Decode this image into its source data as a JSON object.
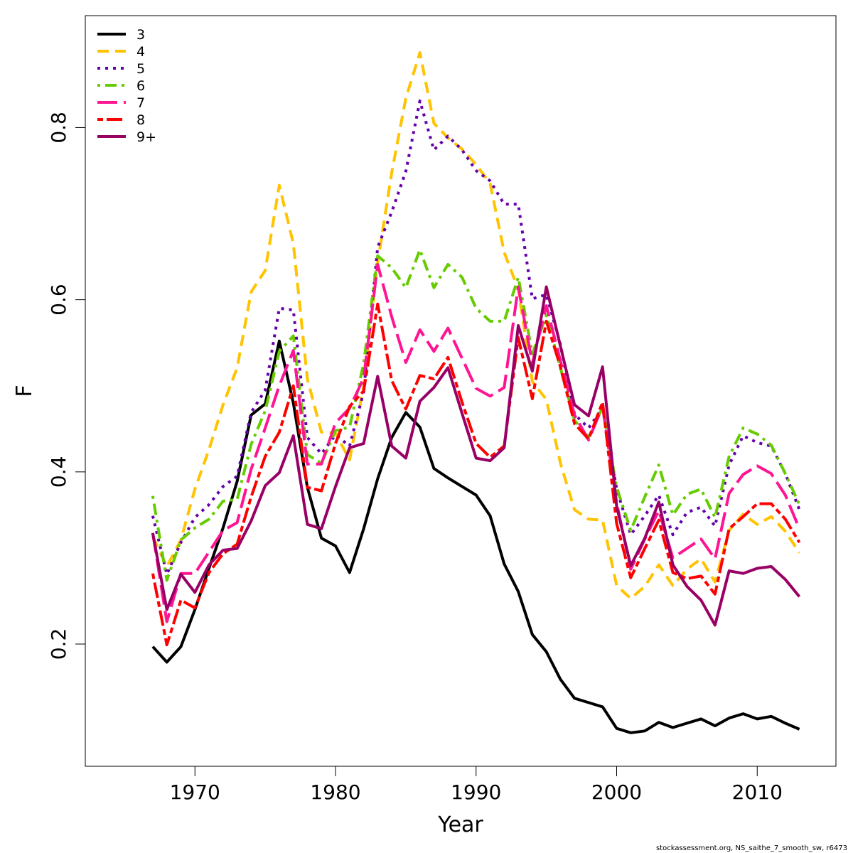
{
  "chart_data": {
    "type": "line",
    "xlabel": "Year",
    "ylabel": "F",
    "xlim": [
      1962.2,
      2015.6
    ],
    "ylim": [
      0.058,
      0.93
    ],
    "x_ticks": [
      1970,
      1980,
      1990,
      2000,
      2010
    ],
    "y_ticks": [
      0.2,
      0.4,
      0.6,
      0.8
    ],
    "grid": false,
    "legend_position": "top-left",
    "x": [
      1967,
      1968,
      1969,
      1970,
      1971,
      1972,
      1973,
      1974,
      1975,
      1976,
      1977,
      1978,
      1979,
      1980,
      1981,
      1982,
      1983,
      1984,
      1985,
      1986,
      1987,
      1988,
      1989,
      1990,
      1991,
      1992,
      1993,
      1994,
      1995,
      1996,
      1997,
      1998,
      1999,
      2000,
      2001,
      2002,
      2003,
      2004,
      2005,
      2006,
      2007,
      2008,
      2009,
      2010,
      2011,
      2012,
      2013
    ],
    "series": [
      {
        "name": "3",
        "color": "#000000",
        "dash": "solid",
        "values": [
          0.197,
          0.179,
          0.197,
          0.24,
          0.288,
          0.335,
          0.389,
          0.466,
          0.479,
          0.552,
          0.48,
          0.382,
          0.323,
          0.314,
          0.283,
          0.334,
          0.392,
          0.44,
          0.469,
          0.452,
          0.404,
          0.393,
          0.383,
          0.373,
          0.349,
          0.293,
          0.261,
          0.211,
          0.191,
          0.159,
          0.137,
          0.132,
          0.127,
          0.102,
          0.097,
          0.099,
          0.109,
          0.103,
          0.108,
          0.113,
          0.105,
          0.114,
          0.119,
          0.113,
          0.116,
          0.108,
          0.101
        ]
      },
      {
        "name": "4",
        "color": "#ffc300",
        "dash": "dashed",
        "values": [
          0.325,
          0.29,
          0.321,
          0.38,
          0.426,
          0.478,
          0.521,
          0.609,
          0.634,
          0.733,
          0.665,
          0.508,
          0.446,
          0.445,
          0.414,
          0.499,
          0.643,
          0.748,
          0.834,
          0.887,
          0.805,
          0.788,
          0.775,
          0.757,
          0.735,
          0.655,
          0.612,
          0.505,
          0.484,
          0.41,
          0.356,
          0.345,
          0.344,
          0.268,
          0.253,
          0.267,
          0.292,
          0.268,
          0.287,
          0.299,
          0.272,
          0.332,
          0.351,
          0.339,
          0.348,
          0.331,
          0.306
        ]
      },
      {
        "name": "5",
        "color": "#6600aa",
        "dash": "dotted",
        "values": [
          0.349,
          0.281,
          0.318,
          0.347,
          0.362,
          0.383,
          0.395,
          0.469,
          0.495,
          0.59,
          0.588,
          0.44,
          0.421,
          0.443,
          0.43,
          0.493,
          0.661,
          0.702,
          0.749,
          0.831,
          0.774,
          0.79,
          0.774,
          0.75,
          0.738,
          0.711,
          0.711,
          0.601,
          0.606,
          0.548,
          0.467,
          0.451,
          0.474,
          0.38,
          0.327,
          0.349,
          0.373,
          0.327,
          0.353,
          0.359,
          0.337,
          0.408,
          0.442,
          0.434,
          0.43,
          0.398,
          0.356
        ]
      },
      {
        "name": "6",
        "color": "#66cc00",
        "dash": "dashdot",
        "values": [
          0.372,
          0.274,
          0.321,
          0.335,
          0.345,
          0.366,
          0.368,
          0.432,
          0.471,
          0.54,
          0.558,
          0.42,
          0.41,
          0.448,
          0.452,
          0.526,
          0.651,
          0.637,
          0.614,
          0.658,
          0.614,
          0.641,
          0.626,
          0.59,
          0.575,
          0.575,
          0.626,
          0.537,
          0.582,
          0.521,
          0.46,
          0.44,
          0.475,
          0.382,
          0.332,
          0.371,
          0.408,
          0.35,
          0.374,
          0.38,
          0.347,
          0.418,
          0.451,
          0.444,
          0.431,
          0.398,
          0.362
        ]
      },
      {
        "name": "7",
        "color": "#ff1493",
        "dash": "longdash",
        "values": [
          0.329,
          0.226,
          0.282,
          0.282,
          0.307,
          0.332,
          0.341,
          0.403,
          0.451,
          0.5,
          0.541,
          0.409,
          0.409,
          0.457,
          0.474,
          0.509,
          0.641,
          0.58,
          0.527,
          0.565,
          0.54,
          0.567,
          0.532,
          0.497,
          0.488,
          0.498,
          0.615,
          0.526,
          0.593,
          0.529,
          0.466,
          0.437,
          0.476,
          0.364,
          0.287,
          0.322,
          0.355,
          0.3,
          0.311,
          0.322,
          0.299,
          0.375,
          0.397,
          0.407,
          0.398,
          0.373,
          0.334
        ]
      },
      {
        "name": "8",
        "color": "#ff0000",
        "dash": "twodash",
        "values": [
          0.282,
          0.199,
          0.251,
          0.242,
          0.283,
          0.305,
          0.316,
          0.371,
          0.418,
          0.446,
          0.5,
          0.382,
          0.378,
          0.433,
          0.476,
          0.494,
          0.595,
          0.506,
          0.473,
          0.512,
          0.508,
          0.533,
          0.481,
          0.433,
          0.417,
          0.43,
          0.556,
          0.485,
          0.575,
          0.522,
          0.456,
          0.438,
          0.481,
          0.34,
          0.277,
          0.311,
          0.344,
          0.283,
          0.276,
          0.279,
          0.258,
          0.334,
          0.348,
          0.363,
          0.363,
          0.345,
          0.318
        ]
      },
      {
        "name": "9+",
        "color": "#990066",
        "dash": "solid",
        "values": [
          0.329,
          0.24,
          0.281,
          0.26,
          0.292,
          0.309,
          0.311,
          0.343,
          0.384,
          0.399,
          0.442,
          0.339,
          0.334,
          0.383,
          0.428,
          0.433,
          0.511,
          0.43,
          0.416,
          0.482,
          0.498,
          0.521,
          0.468,
          0.416,
          0.413,
          0.428,
          0.57,
          0.517,
          0.615,
          0.546,
          0.478,
          0.465,
          0.522,
          0.36,
          0.291,
          0.323,
          0.365,
          0.292,
          0.267,
          0.251,
          0.222,
          0.285,
          0.282,
          0.288,
          0.29,
          0.275,
          0.255
        ]
      }
    ]
  },
  "caption": "stockassessment.org, NS_saithe_7_smooth_sw, r6473"
}
